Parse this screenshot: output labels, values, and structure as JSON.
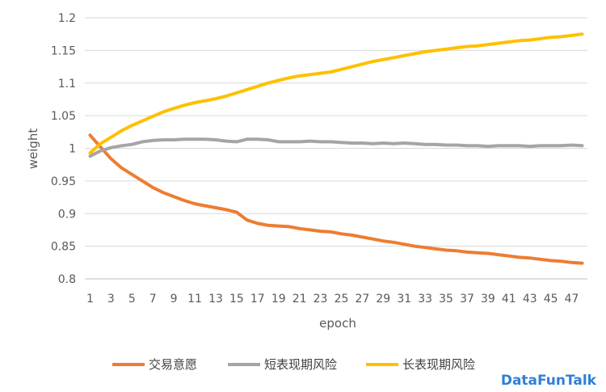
{
  "chart_data": {
    "type": "line",
    "xlabel": "epoch",
    "ylabel": "weight",
    "x": [
      1,
      2,
      3,
      4,
      5,
      6,
      7,
      8,
      9,
      10,
      11,
      12,
      13,
      14,
      15,
      16,
      17,
      18,
      19,
      20,
      21,
      22,
      23,
      24,
      25,
      26,
      27,
      28,
      29,
      30,
      31,
      32,
      33,
      34,
      35,
      36,
      37,
      38,
      39,
      40,
      41,
      42,
      43,
      44,
      45,
      46,
      47,
      48
    ],
    "x_tick_labels": [
      1,
      3,
      5,
      7,
      9,
      11,
      13,
      15,
      17,
      19,
      21,
      23,
      25,
      27,
      29,
      31,
      33,
      35,
      37,
      39,
      41,
      43,
      45,
      47
    ],
    "ylim": [
      0.8,
      1.2
    ],
    "y_ticks": [
      "0.8",
      "0.85",
      "0.9",
      "0.95",
      "1",
      "1.05",
      "1.1",
      "1.15",
      "1.2"
    ],
    "grid": "horizontal",
    "legend_position": "bottom",
    "series": [
      {
        "name": "交易意愿",
        "color": "#ed7d31",
        "values": [
          1.02,
          1.002,
          0.984,
          0.97,
          0.96,
          0.95,
          0.94,
          0.932,
          0.926,
          0.92,
          0.915,
          0.912,
          0.909,
          0.906,
          0.902,
          0.89,
          0.885,
          0.882,
          0.881,
          0.88,
          0.877,
          0.875,
          0.873,
          0.872,
          0.869,
          0.867,
          0.864,
          0.861,
          0.858,
          0.856,
          0.853,
          0.85,
          0.848,
          0.846,
          0.844,
          0.843,
          0.841,
          0.84,
          0.839,
          0.837,
          0.835,
          0.833,
          0.832,
          0.83,
          0.828,
          0.827,
          0.825,
          0.824
        ]
      },
      {
        "name": "短表现期风险",
        "color": "#a5a5a5",
        "values": [
          0.988,
          0.996,
          1.001,
          1.004,
          1.006,
          1.01,
          1.012,
          1.013,
          1.013,
          1.014,
          1.014,
          1.014,
          1.013,
          1.011,
          1.01,
          1.014,
          1.014,
          1.013,
          1.01,
          1.01,
          1.01,
          1.011,
          1.01,
          1.01,
          1.009,
          1.008,
          1.008,
          1.007,
          1.008,
          1.007,
          1.008,
          1.007,
          1.006,
          1.006,
          1.005,
          1.005,
          1.004,
          1.004,
          1.003,
          1.004,
          1.004,
          1.004,
          1.003,
          1.004,
          1.004,
          1.004,
          1.005,
          1.004
        ]
      },
      {
        "name": "长表现期风险",
        "color": "#ffc000",
        "values": [
          0.993,
          1.007,
          1.017,
          1.027,
          1.035,
          1.042,
          1.049,
          1.056,
          1.061,
          1.066,
          1.07,
          1.073,
          1.076,
          1.08,
          1.085,
          1.09,
          1.095,
          1.1,
          1.104,
          1.108,
          1.111,
          1.113,
          1.115,
          1.117,
          1.121,
          1.125,
          1.129,
          1.133,
          1.136,
          1.139,
          1.142,
          1.145,
          1.148,
          1.15,
          1.152,
          1.154,
          1.156,
          1.157,
          1.159,
          1.161,
          1.163,
          1.165,
          1.166,
          1.168,
          1.17,
          1.171,
          1.173,
          1.175
        ]
      }
    ]
  },
  "watermark": "DataFunTalk"
}
